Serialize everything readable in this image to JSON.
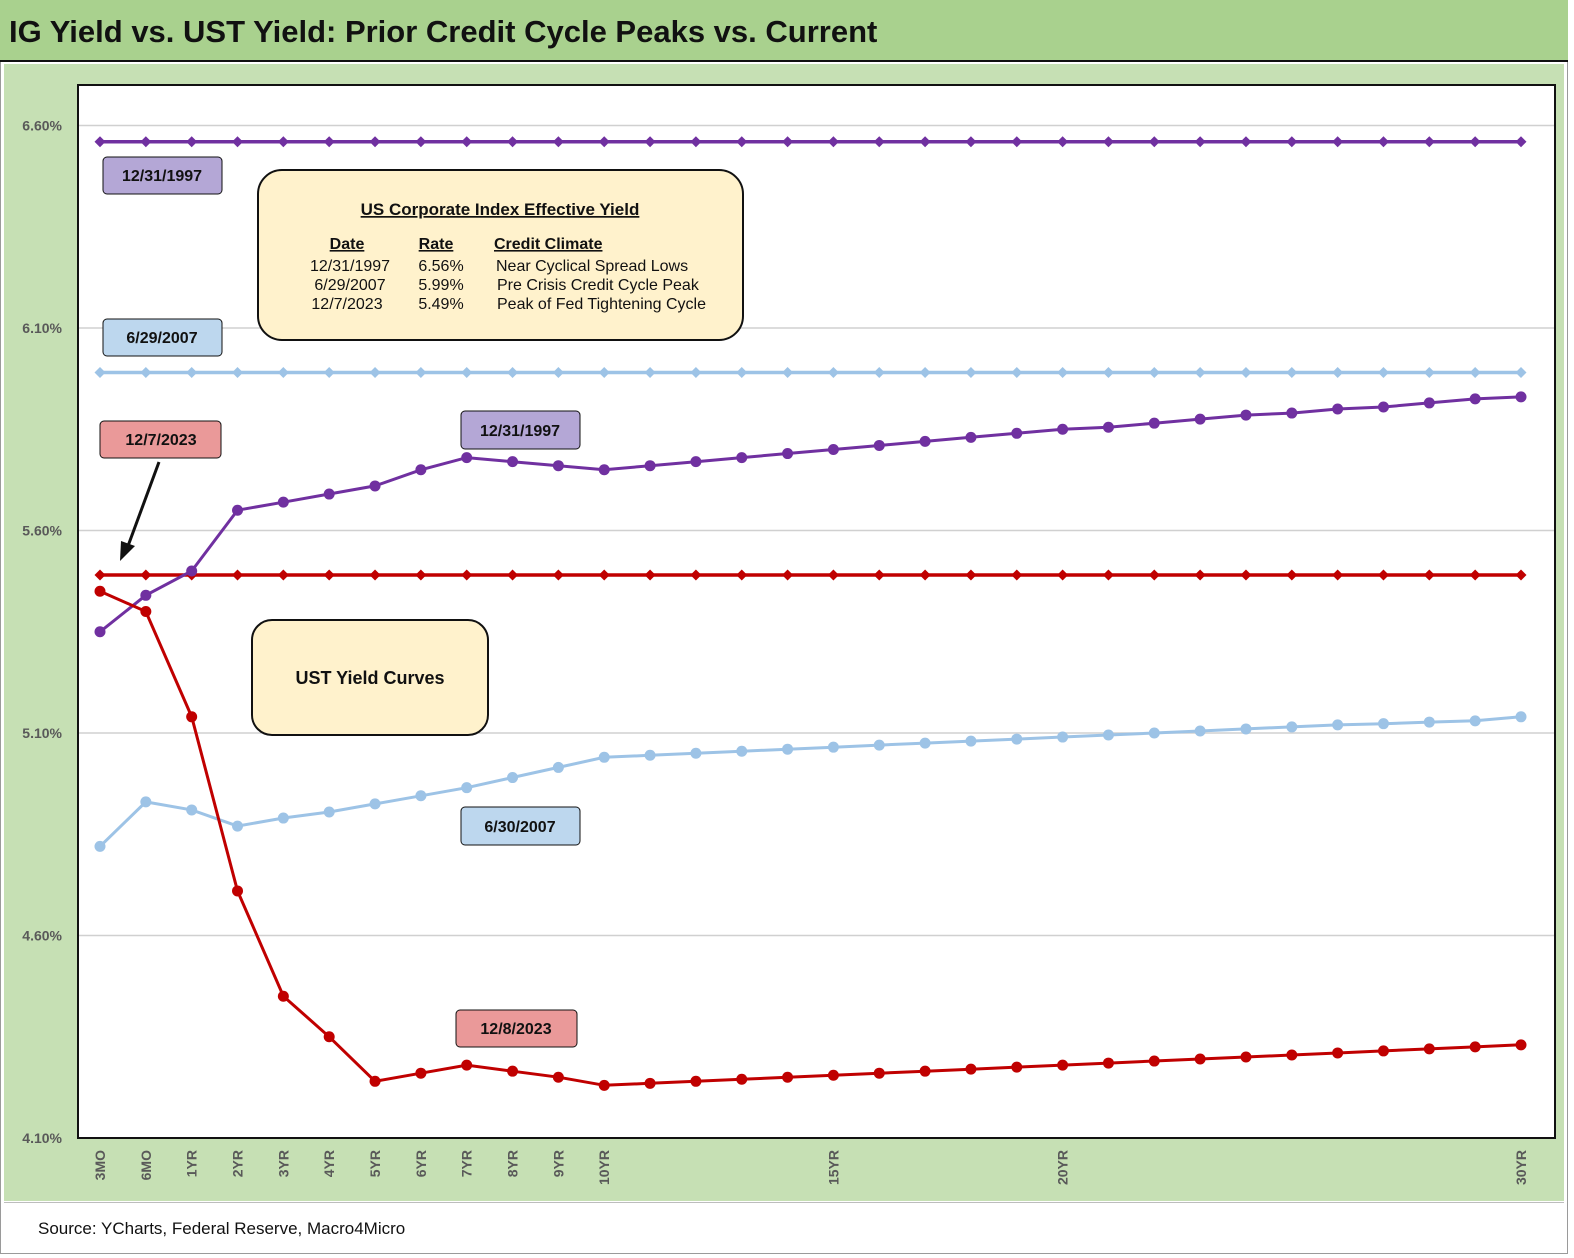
{
  "title": "IG Yield vs. UST Yield: Prior Credit Cycle Peaks vs. Current",
  "source": "Source: YCharts, Federal Reserve, Macro4Micro",
  "colors": {
    "purple": "#7030a0",
    "lightblue": "#9dc3e6",
    "red": "#c00000",
    "background": "#c6e0b4",
    "title_bg": "#a9d18e",
    "plot_bg": "#ffffff",
    "label_purple": "#b4a7d6",
    "label_blue": "#bdd7ee",
    "label_red": "#ea9999",
    "box_fill": "#fff2cc"
  },
  "info_box": {
    "title": "US Corporate Index Effective Yield",
    "headers": [
      "Date",
      "Rate",
      "Credit Climate"
    ],
    "rows": [
      [
        "12/31/1997",
        "6.56%",
        "Near Cyclical Spread Lows"
      ],
      [
        "6/29/2007",
        "5.99%",
        "Pre Crisis Credit Cycle Peak"
      ],
      [
        "12/7/2023",
        "5.49%",
        "Peak of Fed Tightening Cycle"
      ]
    ]
  },
  "ust_box": {
    "text": "UST Yield Curves"
  },
  "labels": {
    "ig_1997": "12/31/1997",
    "ig_2007": "6/29/2007",
    "ig_2023": "12/7/2023",
    "ust_1997": "12/31/1997",
    "ust_2007": "6/30/2007",
    "ust_2023": "12/8/2023"
  },
  "chart_data": {
    "type": "line",
    "x_labels": [
      "3MO",
      "6MO",
      "1YR",
      "2YR",
      "3YR",
      "4YR",
      "5YR",
      "6YR",
      "7YR",
      "8YR",
      "9YR",
      "10YR",
      "",
      "",
      "",
      "",
      "15YR",
      "",
      "",
      "",
      "",
      "20YR",
      "",
      "",
      "",
      "",
      "",
      "",
      "",
      "",
      "",
      "30YR"
    ],
    "y_ticks": [
      "4.10%",
      "4.60%",
      "5.10%",
      "5.60%",
      "6.10%",
      "6.60%"
    ],
    "ylim": [
      4.1,
      6.7
    ],
    "grid": true,
    "series": [
      {
        "name": "12/31/1997",
        "kind": "IG",
        "color": "#7030a0",
        "values": [
          6.56,
          6.56,
          6.56,
          6.56,
          6.56,
          6.56,
          6.56,
          6.56,
          6.56,
          6.56,
          6.56,
          6.56,
          6.56,
          6.56,
          6.56,
          6.56,
          6.56,
          6.56,
          6.56,
          6.56,
          6.56,
          6.56,
          6.56,
          6.56,
          6.56,
          6.56,
          6.56,
          6.56,
          6.56,
          6.56,
          6.56,
          6.56
        ]
      },
      {
        "name": "6/29/2007",
        "kind": "IG",
        "color": "#9dc3e6",
        "values": [
          5.99,
          5.99,
          5.99,
          5.99,
          5.99,
          5.99,
          5.99,
          5.99,
          5.99,
          5.99,
          5.99,
          5.99,
          5.99,
          5.99,
          5.99,
          5.99,
          5.99,
          5.99,
          5.99,
          5.99,
          5.99,
          5.99,
          5.99,
          5.99,
          5.99,
          5.99,
          5.99,
          5.99,
          5.99,
          5.99,
          5.99,
          5.99
        ]
      },
      {
        "name": "12/7/2023",
        "kind": "IG",
        "color": "#c00000",
        "values": [
          5.49,
          5.49,
          5.49,
          5.49,
          5.49,
          5.49,
          5.49,
          5.49,
          5.49,
          5.49,
          5.49,
          5.49,
          5.49,
          5.49,
          5.49,
          5.49,
          5.49,
          5.49,
          5.49,
          5.49,
          5.49,
          5.49,
          5.49,
          5.49,
          5.49,
          5.49,
          5.49,
          5.49,
          5.49,
          5.49,
          5.49,
          5.49
        ]
      },
      {
        "name": "12/31/1997",
        "kind": "UST",
        "color": "#7030a0",
        "values": [
          5.35,
          5.44,
          5.5,
          5.65,
          5.67,
          5.69,
          5.71,
          5.75,
          5.78,
          5.77,
          5.76,
          5.75,
          5.76,
          5.77,
          5.78,
          5.79,
          5.8,
          5.81,
          5.82,
          5.83,
          5.84,
          5.85,
          5.855,
          5.865,
          5.875,
          5.885,
          5.89,
          5.9,
          5.905,
          5.915,
          5.925,
          5.93
        ]
      },
      {
        "name": "6/30/2007",
        "kind": "UST",
        "color": "#9dc3e6",
        "values": [
          4.82,
          4.93,
          4.91,
          4.87,
          4.89,
          4.905,
          4.925,
          4.945,
          4.965,
          4.99,
          5.015,
          5.04,
          5.045,
          5.05,
          5.055,
          5.06,
          5.065,
          5.07,
          5.075,
          5.08,
          5.085,
          5.09,
          5.095,
          5.1,
          5.105,
          5.11,
          5.115,
          5.12,
          5.123,
          5.127,
          5.13,
          5.14
        ]
      },
      {
        "name": "12/8/2023",
        "kind": "UST",
        "color": "#c00000",
        "values": [
          5.45,
          5.4,
          5.14,
          4.71,
          4.45,
          4.35,
          4.24,
          4.26,
          4.28,
          4.265,
          4.25,
          4.23,
          4.235,
          4.24,
          4.245,
          4.25,
          4.255,
          4.26,
          4.265,
          4.27,
          4.275,
          4.28,
          4.285,
          4.29,
          4.295,
          4.3,
          4.305,
          4.31,
          4.315,
          4.32,
          4.325,
          4.33
        ]
      }
    ]
  }
}
